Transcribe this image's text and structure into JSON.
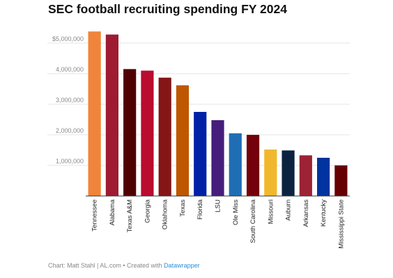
{
  "chart_data": {
    "type": "bar",
    "title": "SEC football recruiting spending FY 2024",
    "categories": [
      "Tennessee",
      "Alabama",
      "Texas A&M",
      "Georgia",
      "Oklahoma",
      "Texas",
      "Florida",
      "LSU",
      "Ole Miss",
      "South Carolina",
      "Missouri",
      "Auburn",
      "Arkansas",
      "Kentucky",
      "Mississippi State"
    ],
    "values": [
      5380000,
      5280000,
      4150000,
      4100000,
      3870000,
      3620000,
      2750000,
      2480000,
      2050000,
      2000000,
      1520000,
      1490000,
      1330000,
      1250000,
      1000000
    ],
    "colors": [
      "#f0843a",
      "#9e1b32",
      "#500000",
      "#ba0c2f",
      "#841617",
      "#bf5700",
      "#0021a5",
      "#461d7c",
      "#1f6eb4",
      "#73000a",
      "#f1b82d",
      "#0c2340",
      "#9d2235",
      "#0033a0",
      "#660000"
    ],
    "ylim": [
      0,
      5500000
    ],
    "yticks": [
      1000000,
      2000000,
      3000000,
      4000000,
      5000000
    ],
    "ytick_labels": [
      "1,000,000",
      "2,000,000",
      "3,000,000",
      "4,000,000",
      "$5,000,000"
    ],
    "xlabel": "",
    "ylabel": "",
    "grid": true,
    "legend": "none"
  },
  "footer": {
    "source": "Chart: Matt Stahl | AL.com • Created with ",
    "tool": "Datawrapper"
  }
}
